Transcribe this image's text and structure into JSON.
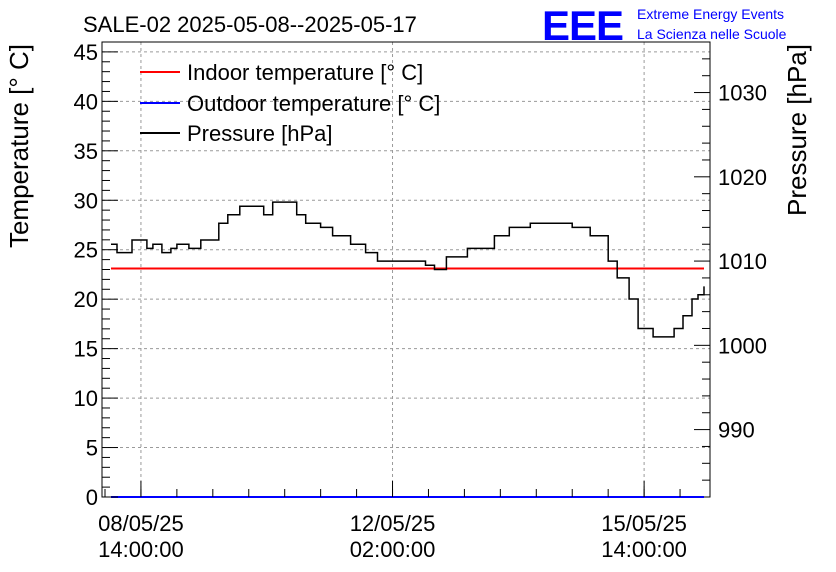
{
  "header": {
    "title": "SALE-02 2025-05-08--2025-05-17",
    "logo_text": "EEE",
    "logo_line1": "Extreme Energy Events",
    "logo_line2": "La Scienza nelle Scuole"
  },
  "colors": {
    "indoor": "#ff0000",
    "outdoor": "#0000ff",
    "pressure": "#000000",
    "logo": "#0000ff",
    "grid": "#9a9a9a"
  },
  "chart_data": {
    "type": "line",
    "title": "SALE-02 2025-05-08--2025-05-17",
    "ylabel": "Temperature [° C]",
    "y2label": "Pressure [hPa]",
    "ylim": [
      0,
      46
    ],
    "y2lim": [
      982,
      1036
    ],
    "xlim": [
      "2025-05-08 01:00",
      "2025-05-16 12:00"
    ],
    "x_ticks": [
      "2025-05-08 14:00",
      "2025-05-12 02:00",
      "2025-05-15 14:00"
    ],
    "x_tick_labels": [
      [
        "08/05/25",
        "14:00:00"
      ],
      [
        "12/05/25",
        "02:00:00"
      ],
      [
        "15/05/25",
        "14:00:00"
      ]
    ],
    "y_ticks": [
      0,
      5,
      10,
      15,
      20,
      25,
      30,
      35,
      40,
      45
    ],
    "y2_ticks": [
      990,
      1000,
      1010,
      1020,
      1030
    ],
    "grid": true,
    "legend_position": "top-left",
    "series": [
      {
        "name": "Indoor temperature [° C]",
        "axis": "left",
        "x": [
          "2025-05-08 04:00",
          "2025-05-16 10:00"
        ],
        "values": [
          23.1,
          23.1
        ]
      },
      {
        "name": "Outdoor temperature [° C]",
        "axis": "left",
        "x": [
          "2025-05-08 04:00",
          "2025-05-16 10:00"
        ],
        "values": [
          0,
          0
        ]
      },
      {
        "name": "Pressure [hPa]",
        "axis": "right",
        "x": [
          "2025-05-08 04:00",
          "2025-05-08 06:00",
          "2025-05-08 11:00",
          "2025-05-08 16:00",
          "2025-05-08 18:00",
          "2025-05-08 21:00",
          "2025-05-09 00:00",
          "2025-05-09 02:00",
          "2025-05-09 06:00",
          "2025-05-09 10:00",
          "2025-05-09 16:00",
          "2025-05-09 19:00",
          "2025-05-09 23:00",
          "2025-05-10 02:00",
          "2025-05-10 07:00",
          "2025-05-10 10:00",
          "2025-05-10 18:00",
          "2025-05-10 21:00",
          "2025-05-11 02:00",
          "2025-05-11 06:00",
          "2025-05-11 12:00",
          "2025-05-11 17:00",
          "2025-05-11 21:00",
          "2025-05-12 04:00",
          "2025-05-12 13:00",
          "2025-05-12 16:00",
          "2025-05-12 20:00",
          "2025-05-13 03:00",
          "2025-05-13 12:00",
          "2025-05-13 17:00",
          "2025-05-14 00:00",
          "2025-05-14 06:00",
          "2025-05-14 14:00",
          "2025-05-14 20:00",
          "2025-05-15 02:00",
          "2025-05-15 05:00",
          "2025-05-15 09:00",
          "2025-05-15 12:00",
          "2025-05-15 17:00",
          "2025-05-15 21:00",
          "2025-05-16 00:00",
          "2025-05-16 03:00",
          "2025-05-16 06:00",
          "2025-05-16 08:00",
          "2025-05-16 10:00"
        ],
        "values": [
          1012.0,
          1011.0,
          1012.5,
          1011.5,
          1012.0,
          1011.0,
          1011.5,
          1012.0,
          1011.5,
          1012.5,
          1014.5,
          1015.5,
          1016.5,
          1016.5,
          1015.5,
          1017.0,
          1015.5,
          1014.5,
          1014.0,
          1013.0,
          1012.0,
          1011.0,
          1010.0,
          1010.0,
          1009.5,
          1009.0,
          1010.5,
          1011.5,
          1013.0,
          1014.0,
          1014.5,
          1014.5,
          1014.0,
          1013.0,
          1010.0,
          1008.0,
          1005.5,
          1002.0,
          1001.0,
          1001.0,
          1002.0,
          1003.5,
          1005.5,
          1006.0,
          1007.0
        ]
      }
    ]
  }
}
